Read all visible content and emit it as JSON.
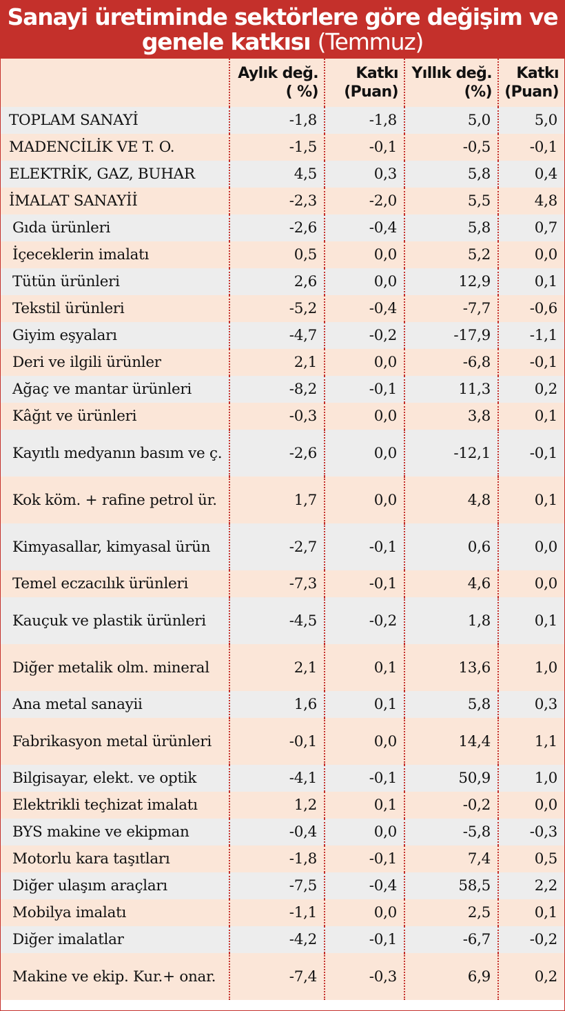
{
  "title": {
    "line1": "Sanayi üretiminde sektörlere göre değişim ve",
    "line2_bold": "genele katkısı",
    "line2_normal": "(Temmuz)"
  },
  "columns": {
    "label": "",
    "monthly_change": "Aylık değ. ( %)",
    "monthly_contribution": "Katkı (Puan)",
    "annual_change": "Yıllık değ. (%)",
    "annual_contribution": "Katkı (Puan)"
  },
  "rows": [
    {
      "label": "TOPLAM SANAYİ",
      "m": "-1,8",
      "mk": "-1,8",
      "y": "5,0",
      "yk": "5,0"
    },
    {
      "label": "MADENCİLİK VE T. O.",
      "m": "-1,5",
      "mk": "-0,1",
      "y": "-0,5",
      "yk": "-0,1"
    },
    {
      "label": "ELEKTRİK, GAZ, BUHAR",
      "m": "4,5",
      "mk": "0,3",
      "y": "5,8",
      "yk": "0,4"
    },
    {
      "label": "İMALAT SANAYİİ",
      "m": "-2,3",
      "mk": "-2,0",
      "y": "5,5",
      "yk": "4,8"
    },
    {
      "label": "Gıda ürünleri",
      "m": "-2,6",
      "mk": "-0,4",
      "y": "5,8",
      "yk": "0,7"
    },
    {
      "label": "İçeceklerin imalatı",
      "m": "0,5",
      "mk": "0,0",
      "y": "5,2",
      "yk": "0,0"
    },
    {
      "label": "Tütün ürünleri",
      "m": "2,6",
      "mk": "0,0",
      "y": "12,9",
      "yk": "0,1"
    },
    {
      "label": "Tekstil ürünleri",
      "m": "-5,2",
      "mk": "-0,4",
      "y": "-7,7",
      "yk": "-0,6"
    },
    {
      "label": "Giyim eşyaları",
      "m": "-4,7",
      "mk": "-0,2",
      "y": "-17,9",
      "yk": "-1,1"
    },
    {
      "label": "Deri ve ilgili ürünler",
      "m": "2,1",
      "mk": "0,0",
      "y": "-6,8",
      "yk": "-0,1"
    },
    {
      "label": "Ağaç ve mantar ürünleri",
      "m": "-8,2",
      "mk": "-0,1",
      "y": "11,3",
      "yk": "0,2"
    },
    {
      "label": "Kâğıt ve ürünleri",
      "m": "-0,3",
      "mk": "0,0",
      "y": "3,8",
      "yk": "0,1"
    },
    {
      "label": "Kayıtlı medyanın basım ve ç.",
      "m": "-2,6",
      "mk": "0,0",
      "y": "-12,1",
      "yk": "-0,1"
    },
    {
      "label": "Kok köm. + rafine petrol ür.",
      "m": "1,7",
      "mk": "0,0",
      "y": "4,8",
      "yk": "0,1"
    },
    {
      "label": "Kimyasallar, kimyasal ürün",
      "m": "-2,7",
      "mk": "-0,1",
      "y": "0,6",
      "yk": "0,0"
    },
    {
      "label": "Temel eczacılık ürünleri",
      "m": "-7,3",
      "mk": "-0,1",
      "y": "4,6",
      "yk": "0,0"
    },
    {
      "label": "Kauçuk ve plastik ürünleri",
      "m": "-4,5",
      "mk": "-0,2",
      "y": "1,8",
      "yk": "0,1"
    },
    {
      "label": "Diğer metalik olm. mineral",
      "m": "2,1",
      "mk": "0,1",
      "y": "13,6",
      "yk": "1,0"
    },
    {
      "label": "Ana metal sanayii",
      "m": "1,6",
      "mk": "0,1",
      "y": "5,8",
      "yk": "0,3"
    },
    {
      "label": "Fabrikasyon metal ürünleri",
      "m": "-0,1",
      "mk": "0,0",
      "y": "14,4",
      "yk": "1,1"
    },
    {
      "label": "Bilgisayar, elekt. ve optik",
      "m": "-4,1",
      "mk": "-0,1",
      "y": "50,9",
      "yk": "1,0"
    },
    {
      "label": "Elektrikli teçhizat imalatı",
      "m": "1,2",
      "mk": "0,1",
      "y": "-0,2",
      "yk": "0,0"
    },
    {
      "label": "BYS makine ve ekipman",
      "m": "-0,4",
      "mk": "0,0",
      "y": "-5,8",
      "yk": "-0,3"
    },
    {
      "label": "Motorlu kara taşıtları",
      "m": "-1,8",
      "mk": "-0,1",
      "y": "7,4",
      "yk": "0,5"
    },
    {
      "label": "Diğer ulaşım araçları",
      "m": "-7,5",
      "mk": "-0,4",
      "y": "58,5",
      "yk": "2,2"
    },
    {
      "label": "Mobilya imalatı",
      "m": "-1,1",
      "mk": "0,0",
      "y": "2,5",
      "yk": "0,1"
    },
    {
      "label": "Diğer imalatlar",
      "m": "-4,2",
      "mk": "-0,1",
      "y": "-6,7",
      "yk": "-0,2"
    },
    {
      "label": "Makine ve ekip. Kur.+ onar.",
      "m": "-7,4",
      "mk": "-0,3",
      "y": "6,9",
      "yk": "0,2"
    }
  ]
}
